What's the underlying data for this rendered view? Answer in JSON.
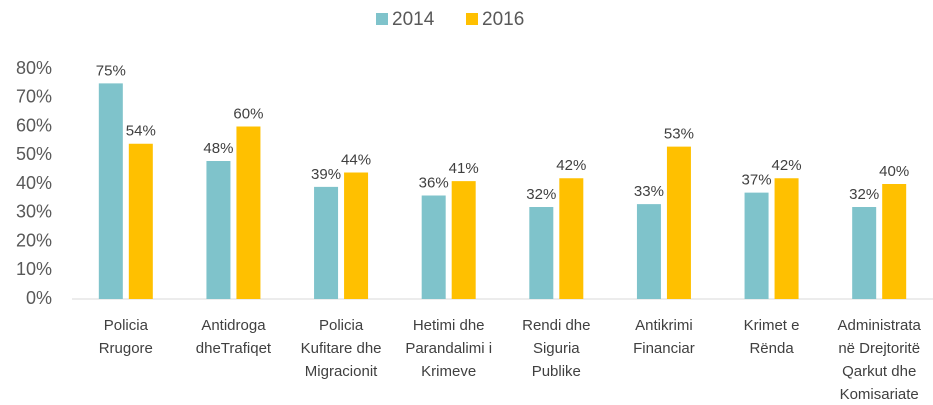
{
  "chart_data": {
    "type": "bar",
    "categories": [
      [
        "Policia",
        "Rrugore"
      ],
      [
        "Antidroga",
        "dheTrafiqet"
      ],
      [
        "Policia",
        "Kufitare dhe",
        "Migracionit"
      ],
      [
        "Hetimi dhe",
        "Parandalimi i",
        "Krimeve"
      ],
      [
        "Rendi dhe",
        "Siguria",
        "Publike"
      ],
      [
        "Antikrimi",
        "Financiar"
      ],
      [
        "Krimet e",
        "Rënda"
      ],
      [
        "Administrata",
        "në Drejtoritë",
        "Qarkut dhe",
        "Komisariate"
      ]
    ],
    "series": [
      {
        "name": "2014",
        "color": "#7fc3cb",
        "values": [
          75,
          48,
          39,
          36,
          32,
          33,
          37,
          32
        ],
        "value_labels": [
          "75%",
          "48%",
          "39%",
          "36%",
          "32%",
          "33%",
          "37%",
          "32%"
        ]
      },
      {
        "name": "2016",
        "color": "#ffc000",
        "values": [
          54,
          60,
          44,
          41,
          42,
          53,
          42,
          40
        ],
        "value_labels": [
          "54%",
          "60%",
          "44%",
          "41%",
          "42%",
          "53%",
          "42%",
          "40%"
        ]
      }
    ],
    "ylim": [
      0,
      80
    ],
    "yticks": [
      {
        "value": 0,
        "label": "0%"
      },
      {
        "value": 10,
        "label": "10%"
      },
      {
        "value": 20,
        "label": "20%"
      },
      {
        "value": 30,
        "label": "30%"
      },
      {
        "value": 40,
        "label": "40%"
      },
      {
        "value": 50,
        "label": "50%"
      },
      {
        "value": 60,
        "label": "60%"
      },
      {
        "value": 70,
        "label": "70%"
      },
      {
        "value": 80,
        "label": "80%"
      }
    ],
    "grid": false,
    "legend": "top"
  }
}
